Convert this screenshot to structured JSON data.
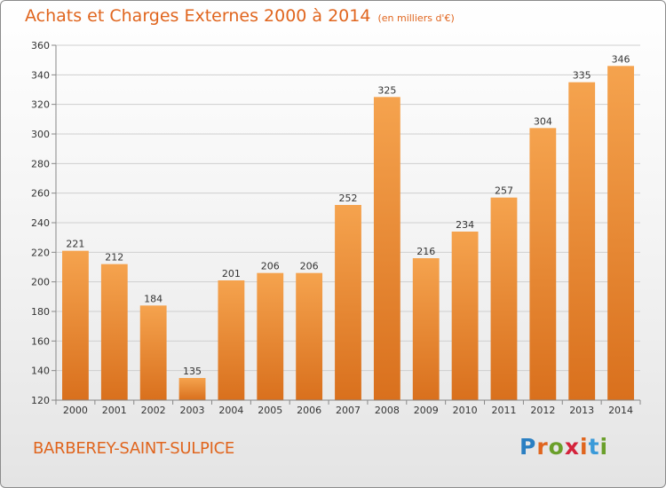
{
  "header": {
    "title": "Achats et Charges Externes 2000 à 2014",
    "subtitle": "(en milliers d'€)"
  },
  "footer": {
    "commune": "BARBEREY-SAINT-SULPICE",
    "logo_letters": [
      "P",
      "r",
      "o",
      "x",
      "i",
      "t",
      "i"
    ],
    "logo_colors": [
      "#2a7fc2",
      "#e0651e",
      "#6a9f2a",
      "#d4233b",
      "#e0651e",
      "#3a9ad9",
      "#6a9f2a"
    ]
  },
  "chart_data": {
    "type": "bar",
    "categories": [
      "2000",
      "2001",
      "2002",
      "2003",
      "2004",
      "2005",
      "2006",
      "2007",
      "2008",
      "2009",
      "2010",
      "2011",
      "2012",
      "2013",
      "2014"
    ],
    "values": [
      221,
      212,
      184,
      135,
      201,
      206,
      206,
      252,
      325,
      216,
      234,
      257,
      304,
      335,
      346
    ],
    "title": "Achats et Charges Externes 2000 à 2014",
    "ylim": [
      120,
      360
    ],
    "yticks": [
      120,
      140,
      160,
      180,
      200,
      220,
      240,
      260,
      280,
      300,
      320,
      340,
      360
    ],
    "grid": true,
    "bar_color_light": "#f5a34e",
    "bar_color_dark": "#d9701d"
  }
}
